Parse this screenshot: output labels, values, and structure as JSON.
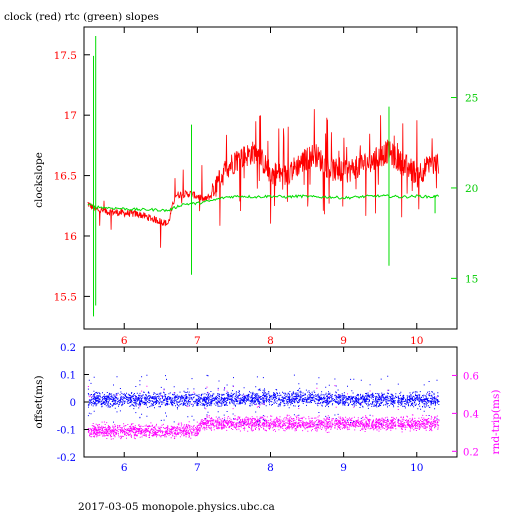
{
  "page": {
    "title": "clock (red) rtc (green) slopes",
    "footer": "2017-03-05  monopole.physics.ubc.ca"
  },
  "colors": {
    "clock": "#ff0000",
    "rtc": "#00dd00",
    "offset": "#0000ff",
    "rndtrip": "#ff00ff",
    "axis": "#000000"
  },
  "chart_data": [
    {
      "type": "line",
      "title": "clock (red) rtc (green) slopes",
      "xlabel": "",
      "ylabel": "clockslope",
      "y2label": "",
      "xlim": [
        5.45,
        10.55
      ],
      "ylim": [
        15.23,
        17.73
      ],
      "y2lim": [
        12.2,
        28.9
      ],
      "x_ticks": [
        6,
        7,
        8,
        9,
        10
      ],
      "y_ticks": [
        15.5,
        16,
        16.5,
        17,
        17.5
      ],
      "y2_ticks": [
        15,
        20,
        25
      ],
      "x_tick_labels": [
        "6",
        "7",
        "8",
        "9",
        "10"
      ],
      "y_tick_labels": [
        "15.5",
        "16",
        "16.5",
        "17",
        "17.5"
      ],
      "y2_tick_labels": [
        "15",
        "20",
        "25"
      ],
      "series": [
        {
          "name": "clock (red)",
          "axis": "left",
          "x": [
            5.5,
            5.6,
            5.8,
            6.0,
            6.2,
            6.4,
            6.6,
            6.65,
            6.7,
            6.9,
            7.0,
            7.1,
            7.2,
            7.4,
            7.6,
            7.8,
            8.0,
            8.2,
            8.4,
            8.6,
            8.8,
            9.0,
            9.2,
            9.4,
            9.6,
            9.8,
            10.0,
            10.2,
            10.3
          ],
          "y": [
            16.27,
            16.22,
            16.2,
            16.19,
            16.18,
            16.14,
            16.1,
            16.22,
            16.34,
            16.35,
            16.33,
            16.3,
            16.34,
            16.57,
            16.65,
            16.7,
            16.52,
            16.5,
            16.6,
            16.68,
            16.56,
            16.52,
            16.58,
            16.62,
            16.7,
            16.6,
            16.52,
            16.58,
            16.6
          ]
        },
        {
          "name": "rtc (green)",
          "axis": "right",
          "x": [
            5.5,
            5.6,
            5.8,
            6.0,
            6.2,
            6.4,
            6.6,
            6.8,
            7.0,
            7.2,
            7.4,
            7.6,
            7.8,
            8.0,
            8.2,
            8.4,
            8.6,
            8.8,
            9.0,
            9.2,
            9.4,
            9.6,
            9.8,
            10.0,
            10.2,
            10.3
          ],
          "y": [
            19.1,
            18.95,
            18.9,
            18.85,
            18.8,
            18.8,
            18.75,
            19.1,
            19.15,
            19.3,
            19.5,
            19.55,
            19.5,
            19.55,
            19.5,
            19.55,
            19.5,
            19.5,
            19.45,
            19.5,
            19.55,
            19.55,
            19.5,
            19.55,
            19.5,
            19.55
          ]
        }
      ]
    },
    {
      "type": "scatter",
      "xlabel": "",
      "ylabel": "offset(ms)",
      "y2label": "rnd-trip(ms)",
      "xlim": [
        5.45,
        10.55
      ],
      "ylim": [
        -0.2,
        0.2
      ],
      "y2lim": [
        0.17,
        0.75
      ],
      "x_ticks": [
        6,
        7,
        8,
        9,
        10
      ],
      "y_ticks": [
        -0.2,
        -0.1,
        0,
        0.1,
        0.2
      ],
      "y2_ticks": [
        0.2,
        0.4,
        0.6
      ],
      "x_tick_labels": [
        "6",
        "7",
        "8",
        "9",
        "10"
      ],
      "y_tick_labels": [
        "-0.2",
        "-0.1",
        "0",
        "0.1",
        "0.2"
      ],
      "y2_tick_labels": [
        "0.2",
        "0.4",
        "0.6"
      ],
      "series": [
        {
          "name": "offset",
          "axis": "left",
          "x": [
            5.5,
            6.0,
            6.5,
            7.0,
            7.5,
            8.0,
            8.5,
            9.0,
            9.5,
            10.0,
            10.3
          ],
          "y": [
            0.01,
            0.01,
            0.01,
            0.01,
            0.01,
            0.015,
            0.015,
            0.01,
            0.01,
            0.01,
            0.01
          ]
        },
        {
          "name": "rnd-trip",
          "axis": "right",
          "x": [
            5.5,
            6.0,
            6.5,
            7.0,
            7.05,
            7.5,
            8.0,
            8.5,
            9.0,
            9.5,
            10.0,
            10.3
          ],
          "y": [
            0.31,
            0.31,
            0.31,
            0.31,
            0.35,
            0.35,
            0.35,
            0.35,
            0.35,
            0.35,
            0.35,
            0.35
          ]
        }
      ]
    }
  ]
}
